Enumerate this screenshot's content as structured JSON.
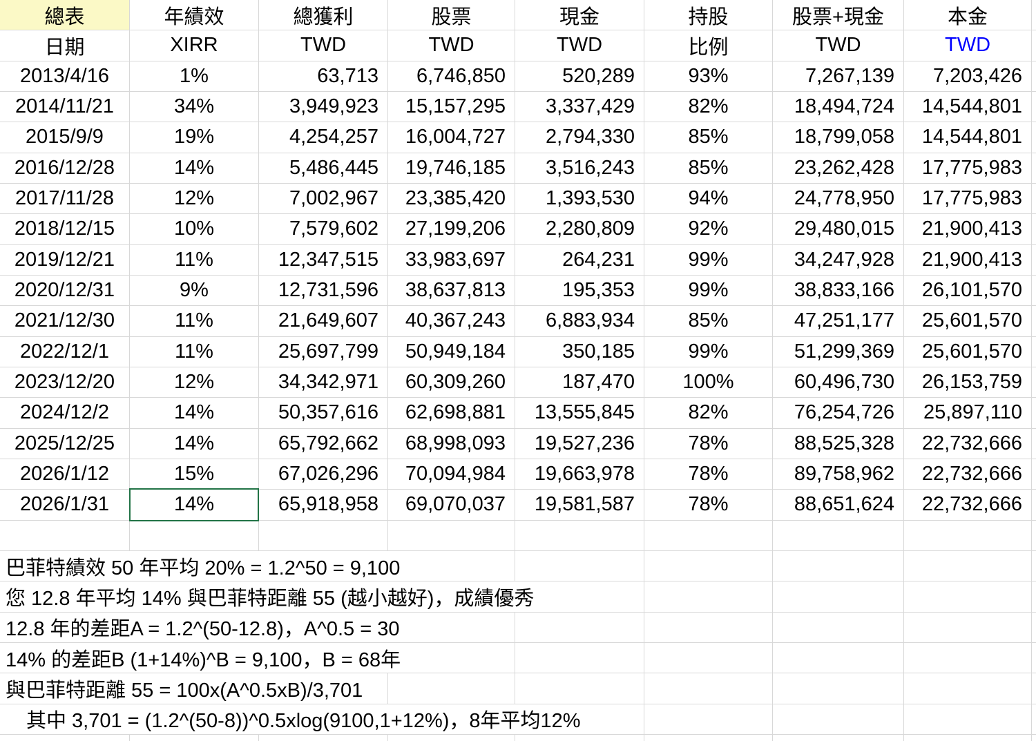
{
  "sheet": {
    "header_row1": [
      "總表",
      "年績效",
      "總獲利",
      "股票",
      "現金",
      "持股",
      "股票+現金",
      "本金"
    ],
    "header_row2": [
      "日期",
      "XIRR",
      "TWD",
      "TWD",
      "TWD",
      "比例",
      "TWD",
      "TWD"
    ],
    "rows": [
      [
        "2013/4/16",
        "1%",
        "63,713",
        "6,746,850",
        "520,289",
        "93%",
        "7,267,139",
        "7,203,426"
      ],
      [
        "2014/11/21",
        "34%",
        "3,949,923",
        "15,157,295",
        "3,337,429",
        "82%",
        "18,494,724",
        "14,544,801"
      ],
      [
        "2015/9/9",
        "19%",
        "4,254,257",
        "16,004,727",
        "2,794,330",
        "85%",
        "18,799,058",
        "14,544,801"
      ],
      [
        "2016/12/28",
        "14%",
        "5,486,445",
        "19,746,185",
        "3,516,243",
        "85%",
        "23,262,428",
        "17,775,983"
      ],
      [
        "2017/11/28",
        "12%",
        "7,002,967",
        "23,385,420",
        "1,393,530",
        "94%",
        "24,778,950",
        "17,775,983"
      ],
      [
        "2018/12/15",
        "10%",
        "7,579,602",
        "27,199,206",
        "2,280,809",
        "92%",
        "29,480,015",
        "21,900,413"
      ],
      [
        "2019/12/21",
        "11%",
        "12,347,515",
        "33,983,697",
        "264,231",
        "99%",
        "34,247,928",
        "21,900,413"
      ],
      [
        "2020/12/31",
        "9%",
        "12,731,596",
        "38,637,813",
        "195,353",
        "99%",
        "38,833,166",
        "26,101,570"
      ],
      [
        "2021/12/30",
        "11%",
        "21,649,607",
        "40,367,243",
        "6,883,934",
        "85%",
        "47,251,177",
        "25,601,570"
      ],
      [
        "2022/12/1",
        "11%",
        "25,697,799",
        "50,949,184",
        "350,185",
        "99%",
        "51,299,369",
        "25,601,570"
      ],
      [
        "2023/12/20",
        "12%",
        "34,342,971",
        "60,309,260",
        "187,470",
        "100%",
        "60,496,730",
        "26,153,759"
      ],
      [
        "2024/12/2",
        "14%",
        "50,357,616",
        "62,698,881",
        "13,555,845",
        "82%",
        "76,254,726",
        "25,897,110"
      ],
      [
        "2025/12/25",
        "14%",
        "65,792,662",
        "68,998,093",
        "19,527,236",
        "78%",
        "88,525,328",
        "22,732,666"
      ],
      [
        "2026/1/12",
        "15%",
        "67,026,296",
        "70,094,984",
        "19,663,978",
        "78%",
        "89,758,962",
        "22,732,666"
      ],
      [
        "2026/1/31",
        "14%",
        "65,918,958",
        "69,070,037",
        "19,581,587",
        "78%",
        "88,651,624",
        "22,732,666"
      ]
    ],
    "selected_cell": {
      "row_index": 14,
      "col_index": 1
    },
    "notes": [
      {
        "text": "巴菲特績效 50 年平均 20% = 1.2^50 = 9,100",
        "span": 4,
        "indent": false
      },
      {
        "text": "您 12.8 年平均 14% 與巴菲特距離 55 (越小越好)，成績優秀",
        "span": 5,
        "indent": false
      },
      {
        "text": "12.8 年的差距A = 1.2^(50-12.8)，A^0.5 = 30",
        "span": 4,
        "indent": false
      },
      {
        "text": "14% 的差距B (1+14%)^B = 9,100，B = 68年",
        "span": 4,
        "indent": false
      },
      {
        "text": "與巴菲特距離 55 = 100x(A^0.5xB)/3,701",
        "span": 3,
        "indent": false
      },
      {
        "text": "其中 3,701 = (1.2^(50-8))^0.5xlog(9100,1+12%)，8年平均12%",
        "span": 5,
        "indent": true
      }
    ],
    "colors": {
      "highlight_yellow": "#FBF9C6",
      "principal_blue": "#0000FF",
      "selection_green": "#217346",
      "gridline": "#D8D8D8"
    }
  }
}
